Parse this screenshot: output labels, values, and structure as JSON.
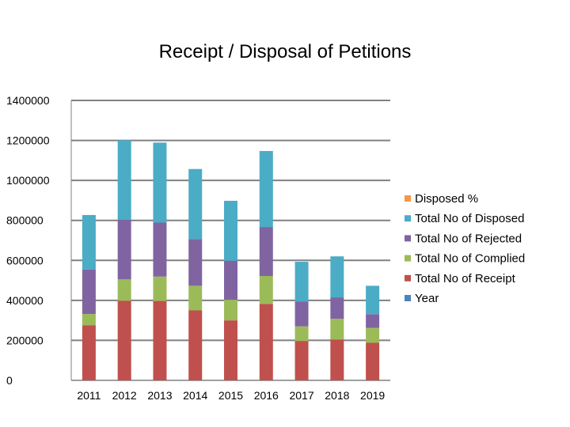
{
  "chart_data": {
    "type": "bar",
    "stacked": true,
    "title": "Receipt / Disposal of Petitions",
    "xlabel": "",
    "ylabel": "",
    "ylim": [
      0,
      1400000
    ],
    "yticks": [
      0,
      200000,
      400000,
      600000,
      800000,
      1000000,
      1200000,
      1400000
    ],
    "grid": true,
    "legend_position": "right",
    "categories": [
      "2011",
      "2012",
      "2013",
      "2014",
      "2015",
      "2016",
      "2017",
      "2018",
      "2019"
    ],
    "series": [
      {
        "name": "Year",
        "color": "#4F81BD",
        "values": [
          2011,
          2012,
          2013,
          2014,
          2015,
          2016,
          2017,
          2018,
          2019
        ]
      },
      {
        "name": "Total No of Receipt",
        "color": "#C0504D",
        "values": [
          275000,
          398000,
          397000,
          350000,
          300000,
          382000,
          197000,
          205000,
          188000
        ]
      },
      {
        "name": "Total No of Complied",
        "color": "#9BBB59",
        "values": [
          57000,
          107000,
          122000,
          123000,
          103000,
          140000,
          73000,
          103000,
          75000
        ]
      },
      {
        "name": "Total No of Rejected",
        "color": "#8064A2",
        "values": [
          222000,
          298000,
          270000,
          234000,
          195000,
          245000,
          125000,
          107000,
          68000
        ]
      },
      {
        "name": "Total No of Disposed",
        "color": "#4BACC6",
        "values": [
          273000,
          398000,
          400000,
          350000,
          300000,
          380000,
          198000,
          205000,
          142000
        ]
      },
      {
        "name": "Disposed %",
        "color": "#F79646",
        "values": [
          100,
          100,
          100,
          100,
          100,
          100,
          100,
          100,
          100
        ]
      }
    ]
  }
}
